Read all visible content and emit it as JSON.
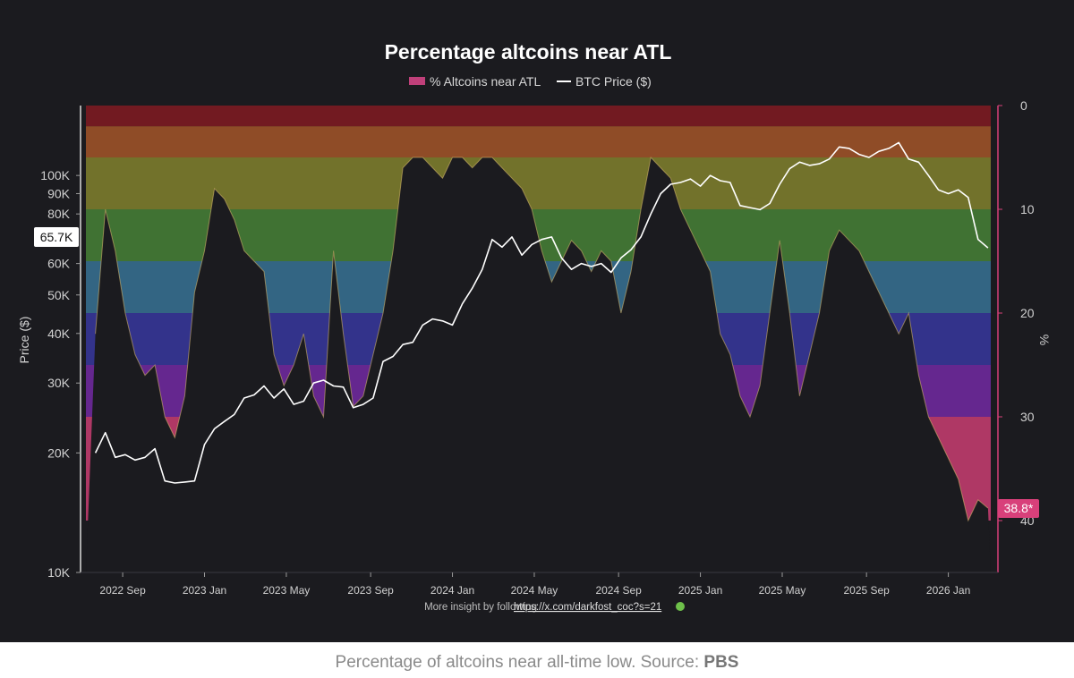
{
  "caption": {
    "text": "Percentage of altcoins near all-time low. Source: ",
    "source": "PBS"
  },
  "chart_data": {
    "type": "area+line",
    "title": "Percentage altcoins near ATL",
    "footer": "More insight by following",
    "footer_link": "https://x.com/darkfost_coc?s=21",
    "footer_icon": "frog-emoji-icon",
    "legend": {
      "position": "top-center",
      "items": [
        {
          "name": "% Altcoins near ATL",
          "color": "#c0407a"
        },
        {
          "name": "BTC Price ($)",
          "color": "#ffffff"
        }
      ]
    },
    "colors": {
      "background": "#1b1b1f",
      "btc": "#ffffff",
      "badge": "#d8407a",
      "band_bottom": "#d8407a",
      "band_top": "#8a1a22"
    },
    "left_axis": {
      "label": "Price ($)",
      "scale": "log",
      "range": [
        10000,
        150000
      ],
      "ticks": [
        10000,
        20000,
        30000,
        40000,
        50000,
        60000,
        70000,
        80000,
        90000,
        100000
      ],
      "tick_labels": [
        "10K",
        "20K",
        "30K",
        "40K",
        "50K",
        "60K",
        "70K",
        "80K",
        "90K",
        "100K"
      ]
    },
    "right_axis": {
      "label": "%",
      "inverted": true,
      "range": [
        0,
        45
      ],
      "ticks": [
        0,
        10,
        20,
        30,
        40
      ],
      "tick_labels": [
        "0",
        "10",
        "20",
        "30",
        "40"
      ]
    },
    "x_axis": {
      "ticks": [
        2022.67,
        2023.0,
        2023.33,
        2023.67,
        2024.0,
        2024.33,
        2024.67,
        2025.0,
        2025.33,
        2025.67,
        2026.0
      ],
      "tick_labels": [
        "2022 Sep",
        "2023 Jan",
        "2023 May",
        "2023 Sep",
        "2024 Jan",
        "2024 May",
        "2024 Sep",
        "2025 Jan",
        "2025 May",
        "2025 Sep",
        "2026 Jan"
      ],
      "range": [
        2022.5,
        2026.2
      ]
    },
    "bands": [
      {
        "from": 0,
        "to": 2,
        "color": "#8a1a22"
      },
      {
        "from": 2,
        "to": 5,
        "color": "#b05a2a"
      },
      {
        "from": 5,
        "to": 10,
        "color": "#8a8a30"
      },
      {
        "from": 10,
        "to": 15,
        "color": "#4a8a3a"
      },
      {
        "from": 15,
        "to": 20,
        "color": "#3a7aa0"
      },
      {
        "from": 20,
        "to": 25,
        "color": "#3a3aaa"
      },
      {
        "from": 25,
        "to": 30,
        "color": "#7a2ab0"
      },
      {
        "from": 30,
        "to": 40,
        "color": "#d8407a"
      }
    ],
    "current_btc": {
      "value": 65700,
      "label": "65.7K"
    },
    "current_pct": {
      "value": 38.8,
      "label": "38.8*"
    },
    "altcoin_pct": {
      "x": [
        2022.56,
        2022.6,
        2022.64,
        2022.68,
        2022.72,
        2022.76,
        2022.8,
        2022.84,
        2022.88,
        2022.92,
        2022.96,
        2023.0,
        2023.04,
        2023.08,
        2023.12,
        2023.16,
        2023.2,
        2023.24,
        2023.28,
        2023.32,
        2023.36,
        2023.4,
        2023.44,
        2023.48,
        2023.52,
        2023.56,
        2023.6,
        2023.64,
        2023.68,
        2023.72,
        2023.76,
        2023.8,
        2023.84,
        2023.88,
        2023.92,
        2023.96,
        2024.0,
        2024.04,
        2024.08,
        2024.12,
        2024.16,
        2024.2,
        2024.24,
        2024.28,
        2024.32,
        2024.36,
        2024.4,
        2024.44,
        2024.48,
        2024.52,
        2024.56,
        2024.6,
        2024.64,
        2024.68,
        2024.72,
        2024.76,
        2024.8,
        2024.84,
        2024.88,
        2024.92,
        2024.96,
        2025.0,
        2025.04,
        2025.08,
        2025.12,
        2025.16,
        2025.2,
        2025.24,
        2025.28,
        2025.32,
        2025.36,
        2025.4,
        2025.44,
        2025.48,
        2025.52,
        2025.56,
        2025.6,
        2025.64,
        2025.68,
        2025.72,
        2025.76,
        2025.8,
        2025.84,
        2025.88,
        2025.92,
        2025.96,
        2026.0,
        2026.04,
        2026.08,
        2026.12,
        2026.16
      ],
      "y": [
        22,
        10,
        14,
        20,
        24,
        26,
        25,
        30,
        32,
        28,
        18,
        14,
        8,
        9,
        11,
        14,
        15,
        16,
        24,
        27,
        25,
        22,
        28,
        30,
        14,
        22,
        29,
        28,
        24,
        20,
        14,
        6,
        5,
        5,
        6,
        7,
        5,
        5,
        6,
        5,
        5,
        6,
        7,
        8,
        10,
        14,
        17,
        15,
        13,
        14,
        16,
        14,
        15,
        20,
        16,
        10,
        5,
        6,
        7,
        10,
        12,
        14,
        16,
        22,
        24,
        28,
        30,
        27,
        20,
        13,
        20,
        28,
        24,
        20,
        14,
        12,
        13,
        14,
        16,
        18,
        20,
        22,
        20,
        26,
        30,
        32,
        34,
        36,
        40,
        38,
        38.8
      ]
    },
    "btc_price": {
      "x": [
        2022.56,
        2022.6,
        2022.64,
        2022.68,
        2022.72,
        2022.76,
        2022.8,
        2022.84,
        2022.88,
        2022.92,
        2022.96,
        2023.0,
        2023.04,
        2023.08,
        2023.12,
        2023.16,
        2023.2,
        2023.24,
        2023.28,
        2023.32,
        2023.36,
        2023.4,
        2023.44,
        2023.48,
        2023.52,
        2023.56,
        2023.6,
        2023.64,
        2023.68,
        2023.72,
        2023.76,
        2023.8,
        2023.84,
        2023.88,
        2023.92,
        2023.96,
        2024.0,
        2024.04,
        2024.08,
        2024.12,
        2024.16,
        2024.2,
        2024.24,
        2024.28,
        2024.32,
        2024.36,
        2024.4,
        2024.44,
        2024.48,
        2024.52,
        2024.56,
        2024.6,
        2024.64,
        2024.68,
        2024.72,
        2024.76,
        2024.8,
        2024.84,
        2024.88,
        2024.92,
        2024.96,
        2025.0,
        2025.04,
        2025.08,
        2025.12,
        2025.16,
        2025.2,
        2025.24,
        2025.28,
        2025.32,
        2025.36,
        2025.4,
        2025.44,
        2025.48,
        2025.52,
        2025.56,
        2025.6,
        2025.64,
        2025.68,
        2025.72,
        2025.76,
        2025.8,
        2025.84,
        2025.88,
        2025.92,
        2025.96,
        2026.0,
        2026.04,
        2026.08,
        2026.12,
        2026.16
      ],
      "y": [
        20000,
        22500,
        19500,
        19800,
        19200,
        19500,
        20500,
        17000,
        16800,
        16900,
        17000,
        21000,
        23000,
        24000,
        25000,
        27500,
        28000,
        29500,
        27500,
        29000,
        26500,
        27000,
        30000,
        30500,
        29500,
        29300,
        26000,
        26500,
        27500,
        34000,
        35000,
        37500,
        38000,
        42000,
        43500,
        43000,
        42000,
        47500,
        52000,
        58000,
        69000,
        66000,
        70000,
        63000,
        67000,
        69000,
        70000,
        62000,
        58000,
        60000,
        59000,
        60000,
        57000,
        62000,
        65000,
        70000,
        80000,
        90000,
        95000,
        96000,
        98000,
        94000,
        100000,
        97000,
        96000,
        84000,
        83000,
        82000,
        85000,
        95000,
        104000,
        108000,
        106000,
        107000,
        110000,
        118000,
        117000,
        113000,
        111000,
        115000,
        117000,
        121000,
        110000,
        108000,
        100000,
        92000,
        90000,
        92000,
        88000,
        69000,
        65700
      ]
    }
  }
}
